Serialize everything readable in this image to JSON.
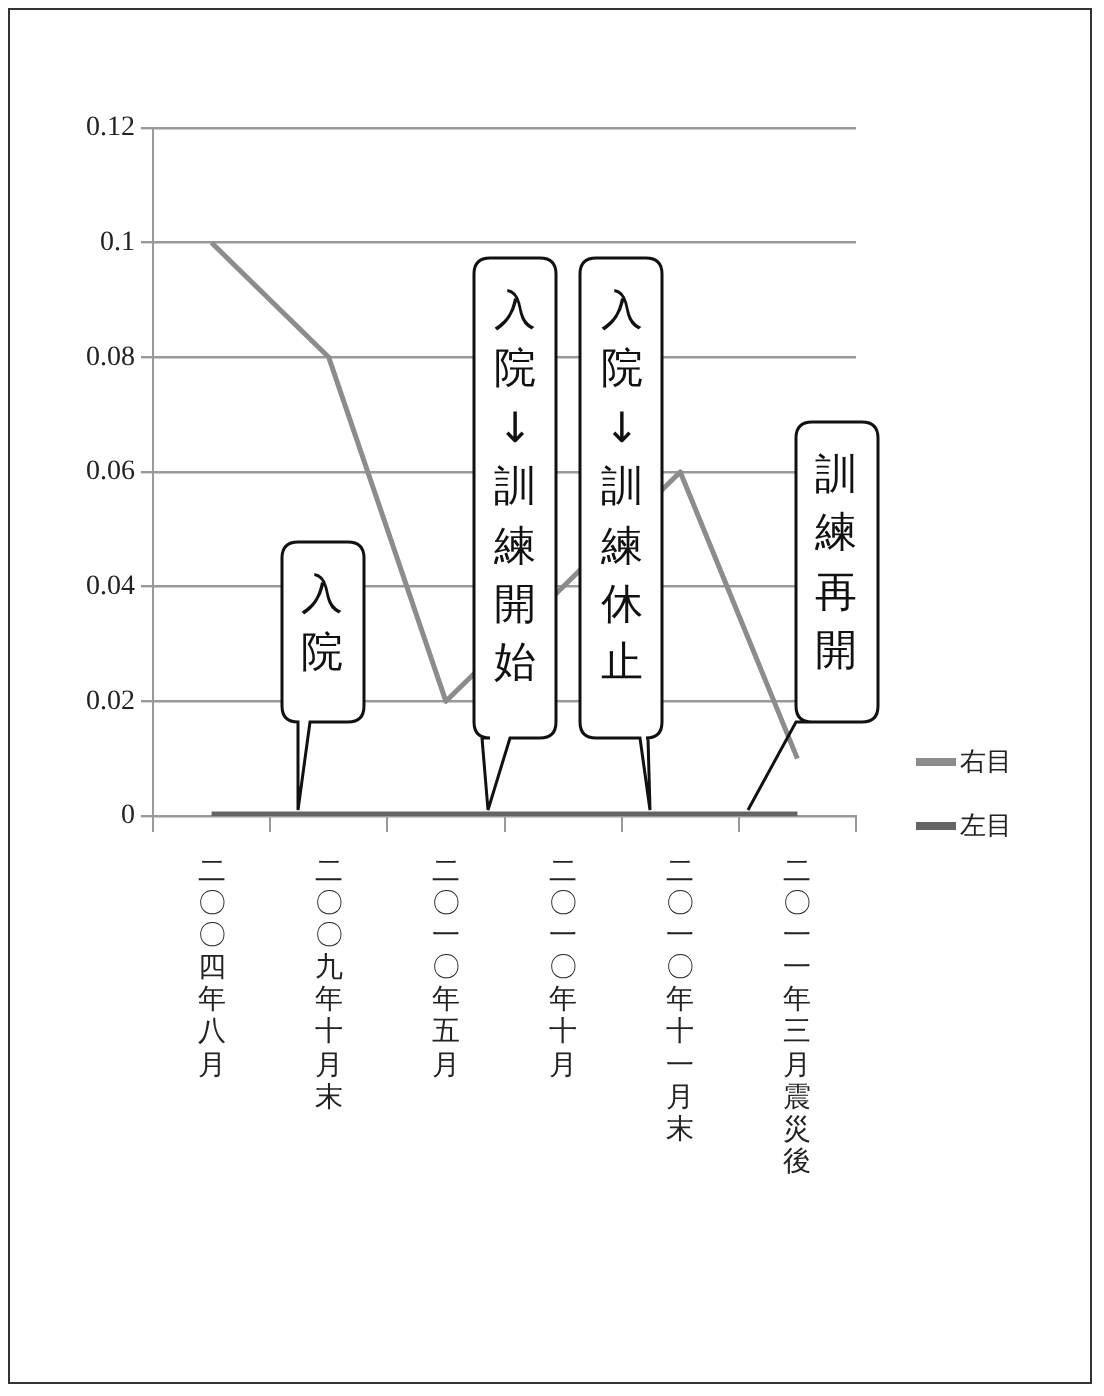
{
  "chart_data": {
    "type": "line",
    "categories": [
      "二〇〇四年八月",
      "二〇〇九年十月末",
      "二〇一〇年五月",
      "二〇一〇年十月",
      "二〇一〇年十一月末",
      "二〇一一年三月震災後"
    ],
    "series": [
      {
        "name": "右目",
        "color": "#8c8c8c",
        "values": [
          0.1,
          0.08,
          0.02,
          0.04,
          0.06,
          0.01
        ]
      },
      {
        "name": "左目",
        "color": "#646464",
        "values": [
          0,
          0,
          0,
          0,
          0,
          0
        ]
      }
    ],
    "ylim": [
      0,
      0.12
    ],
    "yticks": [
      0,
      0.02,
      0.04,
      0.06,
      0.08,
      0.1,
      0.12
    ],
    "grid": "y",
    "legend": "right",
    "marker": "none",
    "line_style": "solid",
    "annotations": [
      "入院",
      "入院↓訓練開始",
      "入院↓訓練休止",
      "訓練再開"
    ]
  }
}
